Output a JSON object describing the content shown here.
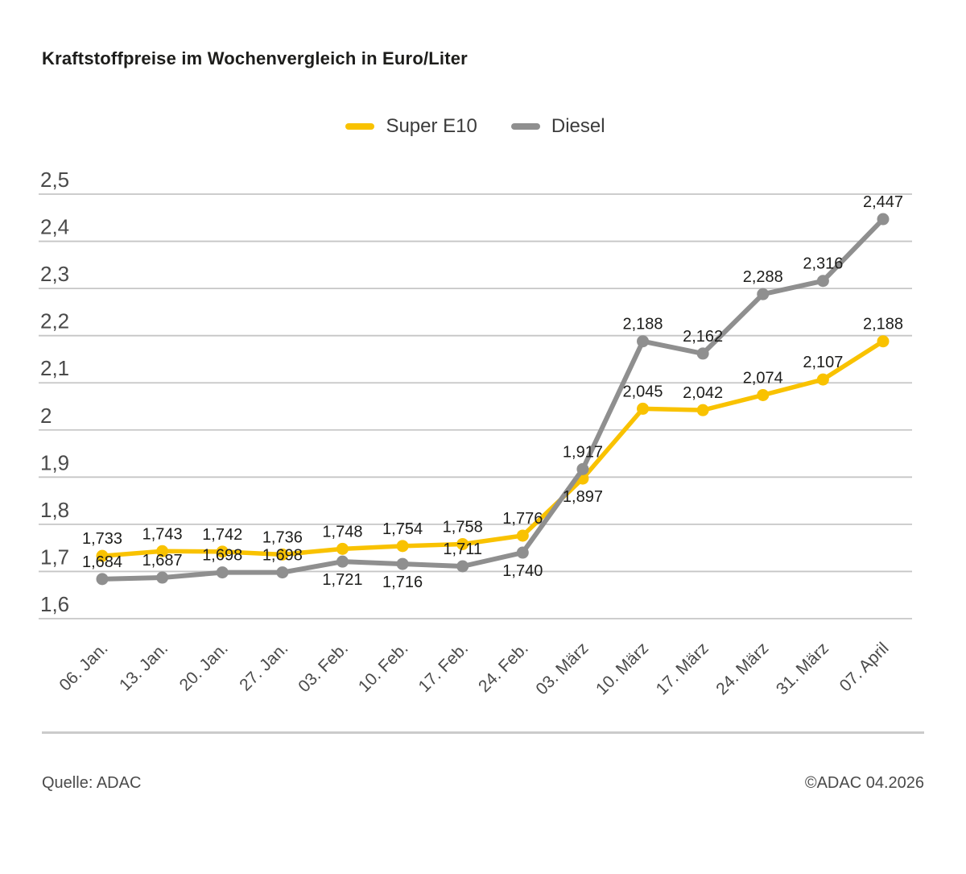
{
  "title": "Kraftstoffpreise im Wochenvergleich in Euro/Liter",
  "footer": {
    "source": "Quelle: ADAC",
    "copyright": "©ADAC 04.2026"
  },
  "colors": {
    "super_e10": "#F9C200",
    "diesel": "#8F8F8F",
    "grid": "#C6C6C6",
    "axis_text": "#4A4A4A",
    "label_text": "#1D1D1B"
  },
  "chart_data": {
    "type": "line",
    "title": "Kraftstoffpreise im Wochenvergleich in Euro/Liter",
    "xlabel": "",
    "ylabel": "Euro/Liter",
    "grid": "horizontal",
    "legend_position": "top-center",
    "categories": [
      "06. Jan.",
      "13. Jan.",
      "20. Jan.",
      "27. Jan.",
      "03. Feb.",
      "10. Feb.",
      "17. Feb.",
      "24. Feb.",
      "03. März",
      "10. März",
      "17. März",
      "24. März",
      "31. März",
      "07. April"
    ],
    "ylim": [
      1.6,
      2.5
    ],
    "yticks": {
      "values": [
        1.6,
        1.7,
        1.8,
        1.9,
        2.0,
        2.1,
        2.2,
        2.3,
        2.4,
        2.5
      ],
      "labels": [
        "1,6",
        "1,7",
        "1,8",
        "1,9",
        "2",
        "2,1",
        "2,2",
        "2,3",
        "2,4",
        "2,5"
      ]
    },
    "series": [
      {
        "name": "Super E10",
        "color": "#F9C200",
        "values": [
          1.733,
          1.743,
          1.742,
          1.736,
          1.748,
          1.754,
          1.758,
          1.776,
          1.897,
          2.045,
          2.042,
          2.074,
          2.107,
          2.188
        ],
        "labels": [
          "1,733",
          "1,743",
          "1,742",
          "1,736",
          "1,748",
          "1,754",
          "1,758",
          "1,776",
          "1,897",
          "2,045",
          "2,042",
          "2,074",
          "2,107",
          "2,188"
        ],
        "label_positions": [
          "above",
          "above",
          "above",
          "above",
          "above",
          "above",
          "above",
          "above",
          "below",
          "above",
          "above",
          "above",
          "above",
          "above"
        ]
      },
      {
        "name": "Diesel",
        "color": "#8F8F8F",
        "values": [
          1.684,
          1.687,
          1.698,
          1.698,
          1.721,
          1.716,
          1.711,
          1.74,
          1.917,
          2.188,
          2.162,
          2.288,
          2.316,
          2.447
        ],
        "labels": [
          "1,684",
          "1,687",
          "1,698",
          "1,698",
          "1,721",
          "1,716",
          "1,711",
          "1,740",
          "1,917",
          "2,188",
          "2,162",
          "2,288",
          "2,316",
          "2,447"
        ],
        "label_positions": [
          "above",
          "above",
          "above",
          "above",
          "below",
          "below",
          "above",
          "below",
          "above",
          "above",
          "above",
          "above",
          "above",
          "above"
        ]
      }
    ]
  }
}
